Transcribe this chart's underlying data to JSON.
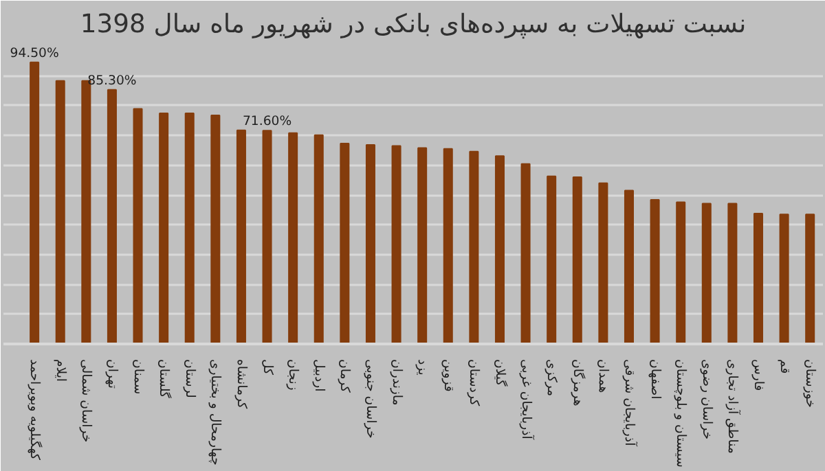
{
  "chart_data": {
    "type": "bar",
    "title": "نسبت تسهیلات به سپرده‌های بانکی در شهریور ماه سال 1398",
    "categories": [
      "کهگیلویه وبویراحمد",
      "ایلام",
      "خراسان شمالی",
      "تهران",
      "سمنان",
      "گلستان",
      "لرستان",
      "چهارمحال و بختیاری",
      "کرمانشاه",
      "کل",
      "زنجان",
      "اردبیل",
      "کرمان",
      "خراسان جنوبی",
      "مازندران",
      "یزد",
      "قزوین",
      "کردستان",
      "گیلان",
      "آذربایجان غربی",
      "مرکزی",
      "هرمزگان",
      "همدان",
      "آذربایجان شرقی",
      "اصفهان",
      "سیستان و بلوچستان",
      "خراسان رضوی",
      "مناطق آزاد تجاری",
      "فارس",
      "قم",
      "خوزستان"
    ],
    "values": [
      94.5,
      88.3,
      88.3,
      85.3,
      78.9,
      77.4,
      77.4,
      76.7,
      71.7,
      71.6,
      70.8,
      70.1,
      67.3,
      66.8,
      66.5,
      65.8,
      65.5,
      64.6,
      63.1,
      60.4,
      56.3,
      56.0,
      54.0,
      51.5,
      48.4,
      47.6,
      47.1,
      47.1,
      43.8,
      43.5,
      43.5
    ],
    "value_labels": [
      "94.50%",
      null,
      null,
      "85.30%",
      null,
      null,
      null,
      null,
      null,
      "71.60%",
      null,
      null,
      null,
      null,
      null,
      null,
      null,
      null,
      null,
      null,
      null,
      null,
      null,
      null,
      null,
      null,
      null,
      null,
      null,
      null,
      null
    ],
    "color": "#843c0c",
    "ylim": [
      0,
      100
    ],
    "yticks": [
      {
        "value": 0,
        "label": null
      },
      {
        "value": 10,
        "label": null
      },
      {
        "value": 20,
        "label": null
      },
      {
        "value": 30,
        "label": null
      },
      {
        "value": 40,
        "label": null
      },
      {
        "value": 50,
        "label": null
      },
      {
        "value": 60,
        "label": null
      },
      {
        "value": 70,
        "label": null
      },
      {
        "value": 80,
        "label": null
      },
      {
        "value": 90,
        "label": null
      },
      {
        "value": 100,
        "label": null
      }
    ],
    "grid": "y",
    "tick_labels": "x"
  }
}
